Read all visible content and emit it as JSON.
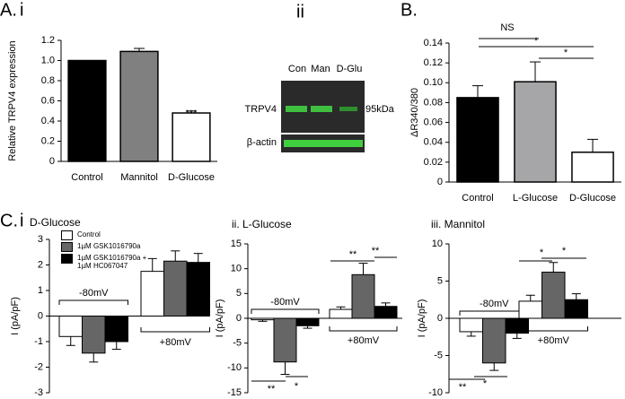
{
  "figure": {
    "panel_a": "A.",
    "panel_a_i": "i",
    "panel_b": "B.",
    "panel_c": "C.",
    "panel_c_i": "i"
  },
  "blot": {
    "label": "ii",
    "lanes": [
      "Con",
      "Man",
      "D-Glu"
    ],
    "bands": [
      "TRPV4",
      "β-actin"
    ],
    "marker": "95kDa"
  },
  "chart_data": [
    {
      "type": "bar",
      "categories": [
        "Control",
        "Mannitol",
        "D-Glucose"
      ],
      "values": [
        1.0,
        1.09,
        0.48
      ],
      "errors": [
        0,
        0.03,
        0.02
      ],
      "colors": [
        "#000000",
        "#808080",
        "#ffffff"
      ],
      "ylabel": "Relative TRPV4 expression",
      "ylim": [
        0,
        1.2
      ],
      "yticks": [
        0,
        0.2,
        0.4,
        0.6,
        0.8,
        {
          "value": 1.0,
          "label": "1.0"
        },
        1.2
      ],
      "annotations": [
        "***"
      ]
    },
    {
      "type": "bar",
      "categories": [
        "Control",
        "L-Glucose",
        "D-Glucose"
      ],
      "values": [
        0.085,
        0.101,
        0.03
      ],
      "errors": [
        0.012,
        0.02,
        0.013
      ],
      "colors": [
        "#000000",
        "#a6a6a8",
        "#ffffff"
      ],
      "ylabel": "ΔR340/380",
      "ylim": [
        0,
        0.14
      ],
      "yticks": [
        0,
        0.02,
        0.04,
        0.06,
        0.08,
        {
          "value": 0.1,
          "label": "0.10"
        },
        0.12,
        0.14
      ],
      "annotations": [
        "NS",
        "*",
        "*"
      ]
    },
    {
      "type": "grouped_bar",
      "title": "D-Glucose",
      "categories": [
        "-80mV",
        "+80mV"
      ],
      "legend": true,
      "series": [
        {
          "name": "Control",
          "color": "#ffffff",
          "values": [
            -0.8,
            1.75
          ],
          "errors": [
            0.35,
            0.5
          ]
        },
        {
          "name": "1µM GSK1016790a",
          "color": "#666666",
          "values": [
            -1.45,
            2.15
          ],
          "errors": [
            0.35,
            0.4
          ]
        },
        {
          "name": "1µM GSK1016790a + 1µM HC067047",
          "color": "#000000",
          "values": [
            -1.0,
            2.1
          ],
          "errors": [
            0.3,
            0.35
          ]
        }
      ],
      "ylabel": "I (pA/pF)",
      "ylim": [
        -3,
        3
      ],
      "yticks": [
        -3,
        -2,
        -1,
        0,
        1,
        2,
        3
      ],
      "annotations": []
    },
    {
      "type": "grouped_bar",
      "title": "ii. L-Glucose",
      "categories": [
        "-80mV",
        "+80mV"
      ],
      "legend": false,
      "series": [
        {
          "color": "#ffffff",
          "values": [
            -0.3,
            1.8
          ],
          "errors": [
            0.3,
            0.5
          ]
        },
        {
          "color": "#666666",
          "values": [
            -8.8,
            8.8
          ],
          "errors": [
            2.5,
            2.3
          ]
        },
        {
          "color": "#000000",
          "values": [
            -1.5,
            2.4
          ],
          "errors": [
            0.5,
            0.7
          ]
        }
      ],
      "ylabel": "I (pA/pF)",
      "ylim": [
        -15,
        15
      ],
      "yticks": [
        -15,
        -10,
        -5,
        0,
        5,
        10,
        15
      ],
      "annotations": [
        "**",
        "**",
        "**",
        "*"
      ]
    },
    {
      "type": "grouped_bar",
      "title": "iii. Mannitol",
      "categories": [
        "-80mV",
        "+80mV"
      ],
      "legend": false,
      "series": [
        {
          "color": "#ffffff",
          "values": [
            -1.8,
            2.3
          ],
          "errors": [
            0.6,
            0.8
          ]
        },
        {
          "color": "#666666",
          "values": [
            -6.0,
            6.2
          ],
          "errors": [
            1.0,
            1.3
          ]
        },
        {
          "color": "#000000",
          "values": [
            -2.0,
            2.5
          ],
          "errors": [
            0.7,
            0.8
          ]
        }
      ],
      "ylabel": "I (pA/pF)",
      "ylim": [
        -10,
        10
      ],
      "yticks": [
        -10,
        -5,
        0,
        5,
        10
      ],
      "annotations": [
        "*",
        "*",
        "**",
        "*"
      ]
    }
  ]
}
